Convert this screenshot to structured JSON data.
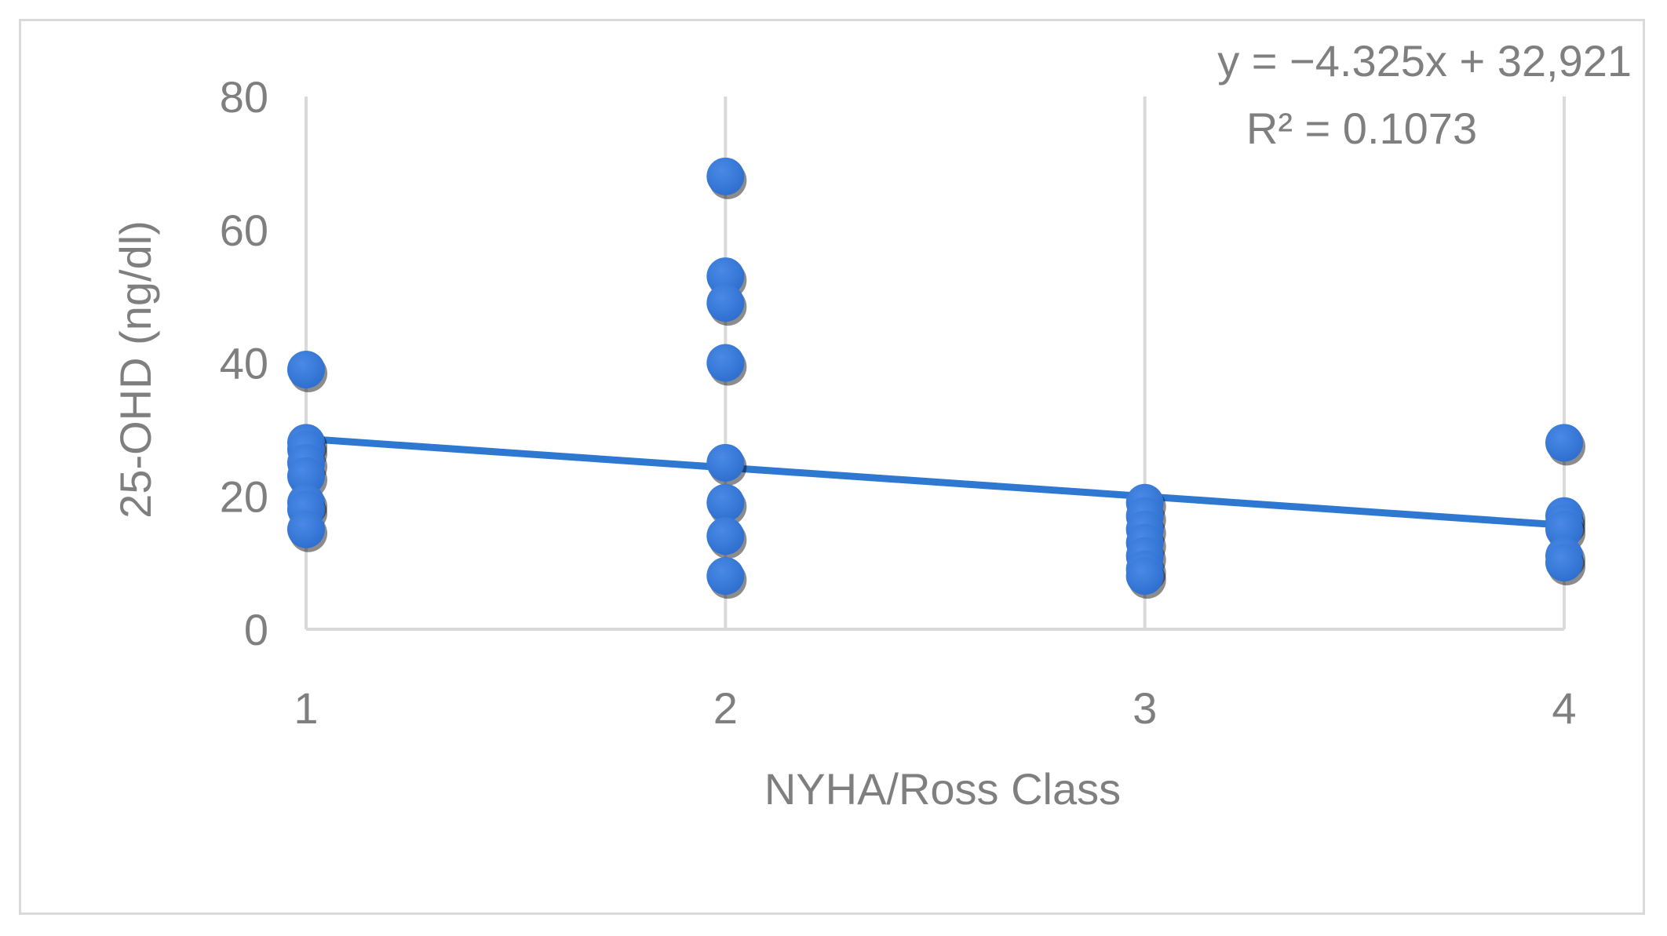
{
  "chart_data": {
    "type": "scatter",
    "title": "",
    "xlabel": "NYHA/Ross Class",
    "ylabel": "25-OHD (ng/dl)",
    "x_ticks": [
      "1",
      "2",
      "3",
      "4"
    ],
    "y_ticks": [
      "0",
      "20",
      "40",
      "60",
      "80"
    ],
    "xlim": [
      1,
      4
    ],
    "ylim": [
      0,
      80
    ],
    "grid": "vertical",
    "legend": "none",
    "point_color": "#2f6fcf",
    "line_color": "#2e78d2",
    "series": [
      {
        "points": [
          {
            "x": 1,
            "y": 39
          },
          {
            "x": 1,
            "y": 28
          },
          {
            "x": 1,
            "y": 27
          },
          {
            "x": 1,
            "y": 25
          },
          {
            "x": 1,
            "y": 23
          },
          {
            "x": 1,
            "y": 19
          },
          {
            "x": 1,
            "y": 18
          },
          {
            "x": 1,
            "y": 15
          },
          {
            "x": 2,
            "y": 68
          },
          {
            "x": 2,
            "y": 53
          },
          {
            "x": 2,
            "y": 49
          },
          {
            "x": 2,
            "y": 40
          },
          {
            "x": 2,
            "y": 25
          },
          {
            "x": 2,
            "y": 19
          },
          {
            "x": 2,
            "y": 14
          },
          {
            "x": 2,
            "y": 8
          },
          {
            "x": 3,
            "y": 19
          },
          {
            "x": 3,
            "y": 17
          },
          {
            "x": 3,
            "y": 15
          },
          {
            "x": 3,
            "y": 13
          },
          {
            "x": 3,
            "y": 11
          },
          {
            "x": 3,
            "y": 9
          },
          {
            "x": 3,
            "y": 8
          },
          {
            "x": 4,
            "y": 28
          },
          {
            "x": 4,
            "y": 17
          },
          {
            "x": 4,
            "y": 16
          },
          {
            "x": 4,
            "y": 15
          },
          {
            "x": 4,
            "y": 11
          },
          {
            "x": 4,
            "y": 10
          }
        ]
      }
    ],
    "trendline": {
      "slope": -4.325,
      "intercept": 32.921,
      "equation_label": "y = −4.325x + 32,921",
      "r2_label": "R² = 0.1073"
    }
  }
}
